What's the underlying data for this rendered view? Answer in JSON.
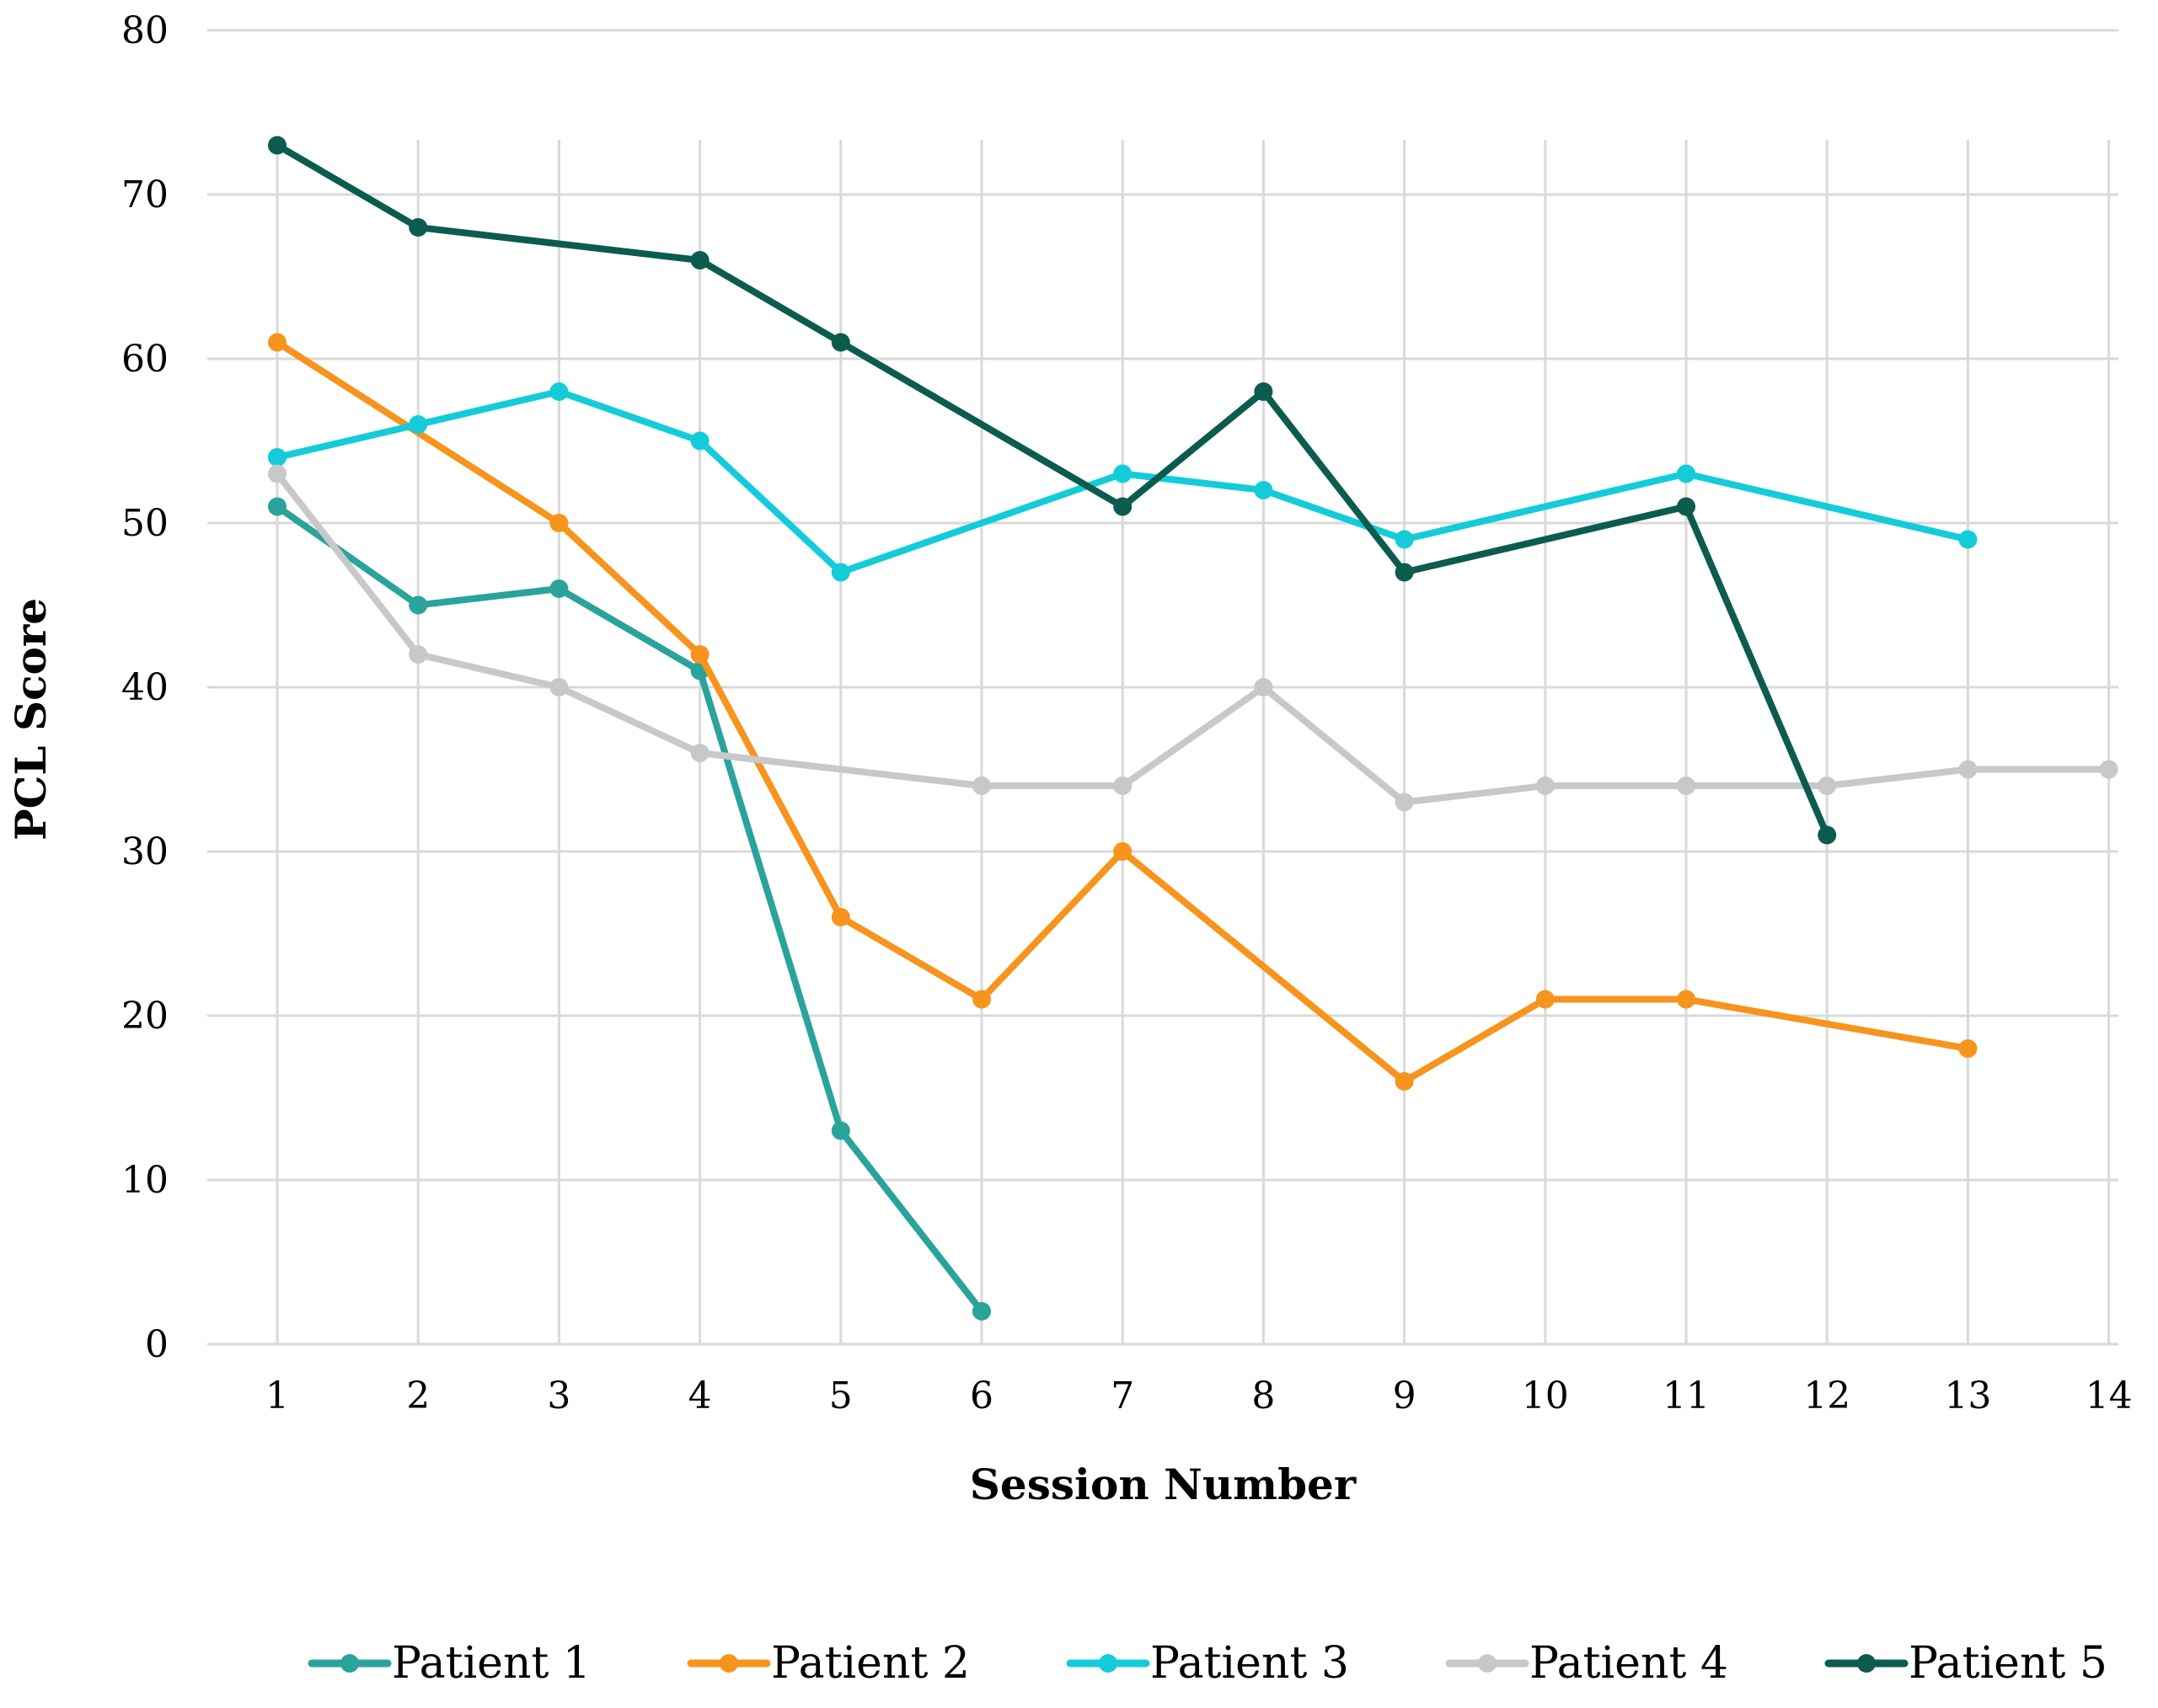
{
  "chart_data": {
    "type": "line",
    "title": "",
    "xlabel": "Session Number",
    "ylabel": "PCL Score",
    "x": [
      1,
      2,
      3,
      4,
      5,
      6,
      7,
      8,
      9,
      10,
      11,
      12,
      13,
      14
    ],
    "ylim": [
      0,
      80
    ],
    "yticks": [
      0,
      10,
      20,
      30,
      40,
      50,
      60,
      70,
      80
    ],
    "grid": true,
    "legend_position": "bottom",
    "series": [
      {
        "name": "Patient 1",
        "color": "#2aa39b",
        "points": [
          [
            1,
            51
          ],
          [
            2,
            45
          ],
          [
            3,
            46
          ],
          [
            4,
            41
          ],
          [
            5,
            13
          ],
          [
            6,
            2
          ]
        ]
      },
      {
        "name": "Patient 2",
        "color": "#f7941d",
        "points": [
          [
            1,
            61
          ],
          [
            3,
            50
          ],
          [
            4,
            42
          ],
          [
            5,
            26
          ],
          [
            6,
            21
          ],
          [
            7,
            30
          ],
          [
            9,
            16
          ],
          [
            10,
            21
          ],
          [
            11,
            21
          ],
          [
            13,
            18
          ]
        ]
      },
      {
        "name": "Patient 3",
        "color": "#14ccd9",
        "points": [
          [
            1,
            54
          ],
          [
            2,
            56
          ],
          [
            3,
            58
          ],
          [
            4,
            55
          ],
          [
            5,
            47
          ],
          [
            7,
            53
          ],
          [
            8,
            52
          ],
          [
            9,
            49
          ],
          [
            11,
            53
          ],
          [
            13,
            49
          ]
        ]
      },
      {
        "name": "Patient 4",
        "color": "#c8c8c8",
        "points": [
          [
            1,
            53
          ],
          [
            2,
            42
          ],
          [
            3,
            40
          ],
          [
            4,
            36
          ],
          [
            6,
            34
          ],
          [
            7,
            34
          ],
          [
            8,
            40
          ],
          [
            9,
            33
          ],
          [
            10,
            34
          ],
          [
            11,
            34
          ],
          [
            12,
            34
          ],
          [
            13,
            35
          ],
          [
            14,
            35
          ]
        ]
      },
      {
        "name": "Patient 5",
        "color": "#0b5c4e",
        "points": [
          [
            1,
            73
          ],
          [
            2,
            68
          ],
          [
            4,
            66
          ],
          [
            5,
            61
          ],
          [
            7,
            51
          ],
          [
            8,
            58
          ],
          [
            9,
            47
          ],
          [
            11,
            51
          ],
          [
            12,
            31
          ]
        ]
      }
    ]
  }
}
